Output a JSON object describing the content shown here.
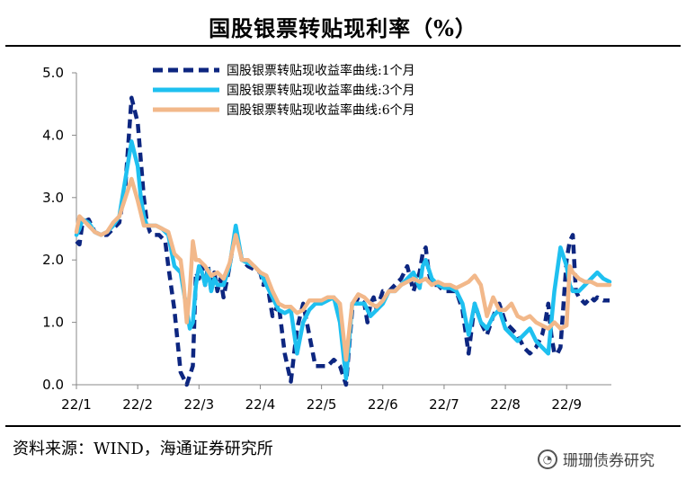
{
  "header": {
    "title": "国股银票转贴现利率（%）"
  },
  "footer": {
    "source": "资料来源：WIND，海通证券研究所"
  },
  "watermark": {
    "text": "珊珊债券研究",
    "icon": "wechat-icon"
  },
  "chart_data": {
    "type": "line",
    "title": "国股银票转贴现利率（%）",
    "xlabel": "",
    "ylabel": "",
    "ylim": [
      0,
      5
    ],
    "yticks": [
      0.0,
      1.0,
      2.0,
      3.0,
      4.0,
      5.0
    ],
    "ytick_labels": [
      "0.0",
      "1.0",
      "2.0",
      "3.0",
      "4.0",
      "5.0"
    ],
    "xlim": [
      0,
      8.73
    ],
    "xticks": [
      0,
      1,
      2,
      3,
      4,
      5,
      6,
      7,
      8
    ],
    "xtick_labels": [
      "22/1",
      "22/2",
      "22/3",
      "22/4",
      "22/5",
      "22/6",
      "22/7",
      "22/8",
      "22/9"
    ],
    "legend_position": "top-right",
    "series": [
      {
        "name": "国股银票转贴现收益率曲线:1个月",
        "color": "#0d2680",
        "style": "dashed",
        "x": [
          0,
          0.05,
          0.1,
          0.2,
          0.3,
          0.4,
          0.5,
          0.6,
          0.7,
          0.8,
          0.9,
          1.0,
          1.05,
          1.1,
          1.15,
          1.2,
          1.25,
          1.3,
          1.35,
          1.4,
          1.45,
          1.5,
          1.6,
          1.7,
          1.8,
          1.9,
          1.95,
          2.0,
          2.05,
          2.1,
          2.15,
          2.2,
          2.25,
          2.3,
          2.35,
          2.4,
          2.5,
          2.6,
          2.7,
          2.8,
          2.9,
          3.0,
          3.05,
          3.1,
          3.15,
          3.2,
          3.3,
          3.4,
          3.5,
          3.6,
          3.7,
          3.8,
          3.9,
          4.0,
          4.1,
          4.2,
          4.3,
          4.4,
          4.5,
          4.6,
          4.7,
          4.75,
          4.8,
          4.85,
          4.9,
          5.0,
          5.1,
          5.2,
          5.3,
          5.4,
          5.5,
          5.6,
          5.65,
          5.7,
          5.75,
          5.8,
          5.9,
          6.0,
          6.1,
          6.2,
          6.3,
          6.4,
          6.5,
          6.6,
          6.7,
          6.8,
          6.9,
          7.0,
          7.1,
          7.2,
          7.3,
          7.4,
          7.5,
          7.6,
          7.65,
          7.7,
          7.75,
          7.8,
          7.85,
          7.9,
          8.0,
          8.05,
          8.1,
          8.15,
          8.2,
          8.25,
          8.3,
          8.35,
          8.4,
          8.45,
          8.5,
          8.6,
          8.7
        ],
        "values": [
          2.3,
          2.25,
          2.6,
          2.65,
          2.45,
          2.4,
          2.4,
          2.5,
          2.6,
          3.2,
          4.6,
          4.2,
          3.6,
          3.0,
          2.6,
          2.45,
          2.4,
          2.4,
          2.4,
          2.35,
          2.3,
          1.9,
          1.2,
          0.2,
          0.0,
          0.3,
          1.8,
          1.7,
          1.9,
          1.6,
          1.9,
          1.5,
          1.8,
          1.5,
          1.7,
          1.4,
          1.9,
          2.5,
          2.0,
          1.9,
          1.85,
          1.8,
          1.6,
          1.75,
          1.4,
          1.1,
          1.3,
          0.5,
          0.05,
          0.9,
          1.3,
          0.8,
          0.3,
          0.3,
          0.3,
          0.4,
          0.3,
          0.0,
          1.2,
          1.4,
          1.3,
          1.0,
          1.3,
          1.4,
          1.2,
          1.5,
          1.5,
          1.6,
          1.7,
          1.9,
          1.5,
          1.8,
          2.1,
          2.2,
          1.8,
          1.6,
          1.6,
          1.5,
          1.5,
          1.5,
          1.2,
          0.5,
          1.3,
          1.0,
          0.8,
          1.1,
          1.3,
          1.0,
          0.9,
          0.8,
          0.6,
          0.5,
          0.6,
          0.8,
          1.0,
          1.3,
          0.8,
          0.5,
          0.5,
          0.6,
          2.0,
          2.3,
          2.4,
          1.5,
          1.4,
          1.35,
          1.3,
          1.35,
          1.4,
          1.35,
          1.4,
          1.35,
          1.35
        ]
      },
      {
        "name": "国股银票转贴现收益率曲线:3个月",
        "color": "#1ec0f0",
        "style": "solid",
        "x": [
          0,
          0.05,
          0.1,
          0.2,
          0.3,
          0.4,
          0.5,
          0.6,
          0.7,
          0.8,
          0.9,
          1.0,
          1.05,
          1.1,
          1.15,
          1.2,
          1.3,
          1.4,
          1.5,
          1.6,
          1.7,
          1.75,
          1.8,
          1.85,
          1.9,
          1.95,
          2.0,
          2.05,
          2.1,
          2.15,
          2.2,
          2.25,
          2.3,
          2.4,
          2.5,
          2.6,
          2.7,
          2.8,
          2.9,
          3.0,
          3.05,
          3.1,
          3.2,
          3.3,
          3.4,
          3.5,
          3.6,
          3.7,
          3.8,
          3.9,
          4.0,
          4.1,
          4.2,
          4.3,
          4.4,
          4.5,
          4.6,
          4.7,
          4.8,
          4.9,
          5.0,
          5.1,
          5.2,
          5.3,
          5.4,
          5.5,
          5.6,
          5.65,
          5.7,
          5.8,
          5.9,
          6.0,
          6.1,
          6.2,
          6.3,
          6.4,
          6.5,
          6.6,
          6.7,
          6.8,
          6.9,
          7.0,
          7.1,
          7.2,
          7.3,
          7.4,
          7.5,
          7.6,
          7.7,
          7.8,
          7.9,
          8.0,
          8.05,
          8.1,
          8.2,
          8.3,
          8.4,
          8.5,
          8.6,
          8.7
        ],
        "values": [
          2.4,
          2.5,
          2.65,
          2.6,
          2.45,
          2.4,
          2.45,
          2.55,
          2.7,
          3.3,
          3.9,
          3.5,
          3.0,
          2.7,
          2.55,
          2.55,
          2.55,
          2.5,
          2.4,
          1.9,
          1.8,
          1.5,
          1.2,
          0.9,
          1.0,
          1.6,
          1.9,
          1.8,
          1.6,
          1.85,
          1.5,
          1.7,
          1.6,
          1.6,
          1.9,
          2.55,
          2.0,
          1.95,
          1.9,
          1.8,
          1.7,
          1.6,
          1.4,
          1.2,
          1.15,
          1.2,
          0.5,
          1.0,
          1.2,
          1.3,
          1.3,
          1.35,
          1.4,
          1.0,
          0.1,
          1.3,
          1.3,
          1.3,
          1.1,
          1.2,
          1.3,
          1.5,
          1.5,
          1.6,
          1.7,
          1.8,
          1.55,
          1.9,
          2.0,
          1.7,
          1.6,
          1.55,
          1.55,
          1.5,
          1.3,
          0.8,
          1.3,
          1.0,
          0.9,
          1.1,
          1.2,
          0.9,
          0.8,
          0.7,
          0.8,
          0.9,
          0.7,
          0.6,
          0.5,
          1.5,
          2.2,
          1.9,
          1.6,
          1.5,
          1.5,
          1.6,
          1.7,
          1.8,
          1.7,
          1.65
        ]
      },
      {
        "name": "国股银票转贴现收益率曲线:6个月",
        "color": "#f2b88a",
        "style": "solid",
        "x": [
          0,
          0.05,
          0.1,
          0.2,
          0.3,
          0.4,
          0.5,
          0.6,
          0.7,
          0.8,
          0.9,
          1.0,
          1.1,
          1.2,
          1.3,
          1.4,
          1.5,
          1.6,
          1.7,
          1.75,
          1.8,
          1.85,
          1.9,
          1.95,
          2.0,
          2.1,
          2.2,
          2.3,
          2.4,
          2.5,
          2.6,
          2.7,
          2.8,
          2.9,
          3.0,
          3.1,
          3.2,
          3.3,
          3.4,
          3.5,
          3.6,
          3.7,
          3.8,
          3.9,
          4.0,
          4.1,
          4.2,
          4.3,
          4.4,
          4.5,
          4.6,
          4.7,
          4.8,
          4.9,
          5.0,
          5.1,
          5.2,
          5.3,
          5.4,
          5.5,
          5.6,
          5.7,
          5.8,
          5.9,
          6.0,
          6.1,
          6.2,
          6.3,
          6.4,
          6.5,
          6.6,
          6.7,
          6.8,
          6.9,
          7.0,
          7.1,
          7.2,
          7.3,
          7.4,
          7.5,
          7.6,
          7.7,
          7.8,
          7.9,
          8.0,
          8.05,
          8.1,
          8.2,
          8.3,
          8.4,
          8.5,
          8.6,
          8.7
        ],
        "values": [
          2.45,
          2.7,
          2.65,
          2.55,
          2.45,
          2.4,
          2.45,
          2.6,
          2.7,
          3.0,
          3.3,
          2.95,
          2.55,
          2.55,
          2.55,
          2.5,
          2.45,
          2.1,
          2.0,
          1.6,
          1.0,
          1.5,
          2.3,
          2.0,
          2.0,
          1.9,
          1.75,
          1.8,
          1.7,
          1.95,
          2.4,
          2.0,
          2.0,
          1.9,
          1.8,
          1.75,
          1.5,
          1.3,
          1.25,
          1.25,
          1.15,
          1.2,
          1.35,
          1.35,
          1.35,
          1.4,
          1.4,
          1.3,
          0.4,
          1.3,
          1.45,
          1.4,
          1.3,
          1.25,
          1.35,
          1.5,
          1.5,
          1.6,
          1.65,
          1.7,
          1.65,
          1.7,
          1.6,
          1.65,
          1.6,
          1.6,
          1.55,
          1.6,
          1.65,
          1.75,
          1.6,
          1.1,
          1.4,
          1.2,
          1.2,
          1.3,
          1.1,
          1.05,
          1.1,
          1.0,
          0.95,
          0.9,
          1.0,
          0.9,
          0.95,
          1.9,
          1.8,
          1.7,
          1.65,
          1.65,
          1.6,
          1.6,
          1.6
        ]
      }
    ]
  }
}
